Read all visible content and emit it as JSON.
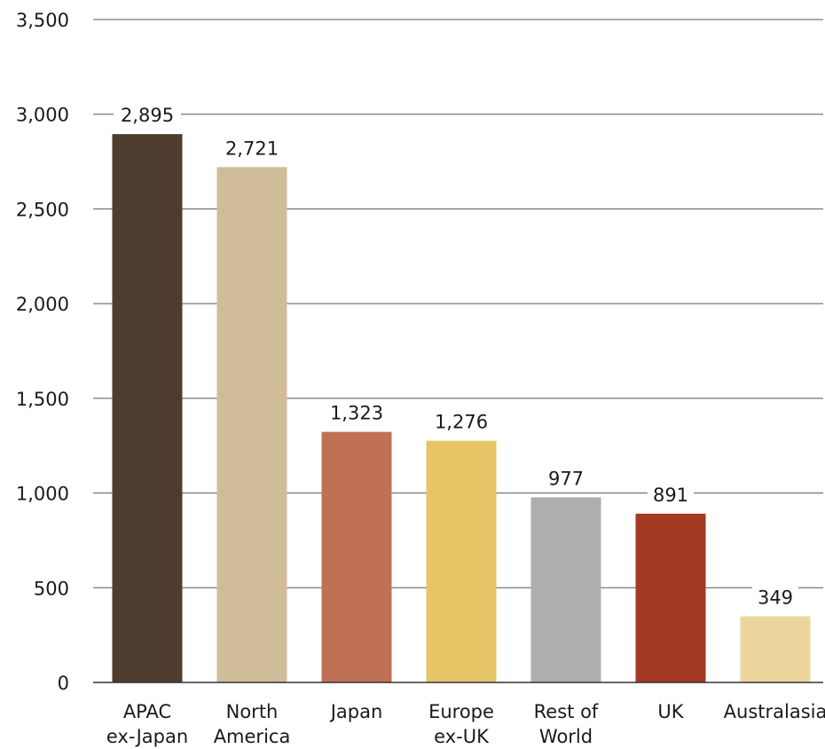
{
  "chart_data": {
    "type": "bar",
    "title": "",
    "xlabel": "",
    "ylabel": "",
    "ylim": [
      0,
      3500
    ],
    "yticks": [
      0,
      500,
      1000,
      1500,
      2000,
      2500,
      3000,
      3500
    ],
    "ytick_labels": [
      "0",
      "500",
      "1,000",
      "1,500",
      "2,000",
      "2,500",
      "3,000",
      "3,500"
    ],
    "grid": true,
    "categories": [
      [
        "APAC",
        "ex-Japan"
      ],
      [
        "North",
        "America"
      ],
      [
        "Japan"
      ],
      [
        "Europe",
        "ex-UK"
      ],
      [
        "Rest of",
        "World"
      ],
      [
        "UK"
      ],
      [
        "Australasia"
      ]
    ],
    "values": [
      2895,
      2721,
      1323,
      1276,
      977,
      891,
      349
    ],
    "data_labels": [
      "2,895",
      "2,721",
      "1,323",
      "1,276",
      "977",
      "891",
      "349"
    ],
    "colors": [
      "#4e3c2e",
      "#d1bc99",
      "#c07155",
      "#e6c567",
      "#adaeb0",
      "#a33823",
      "#ecd69e"
    ]
  }
}
